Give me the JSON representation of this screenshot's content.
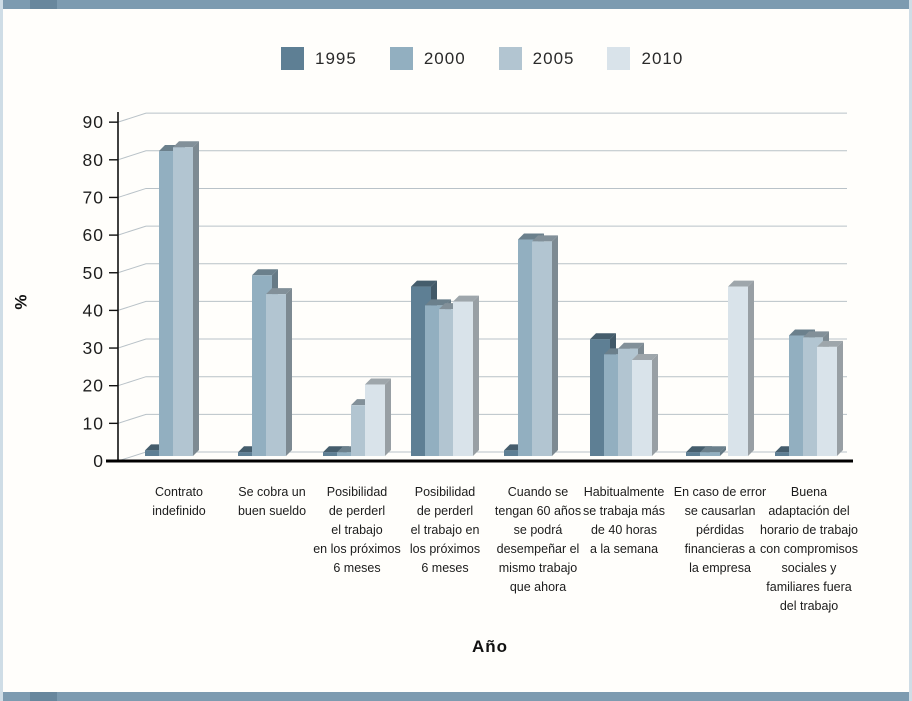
{
  "frame": {
    "bar_color": "#7d9bb0",
    "accent_color": "#68879d",
    "edge_color": "#cfdde6"
  },
  "chart_data": {
    "type": "bar",
    "title": "",
    "xlabel": "Año",
    "ylabel": "%",
    "ylim": [
      0,
      90
    ],
    "yticks": [
      0,
      10,
      20,
      30,
      40,
      50,
      60,
      70,
      80,
      90
    ],
    "grid": true,
    "pseudo_3d": true,
    "legend_position": "top",
    "categories": [
      "Contrato indefinido",
      "Se cobra un buen sueldo",
      "Posibilidad de perderl el trabajo en los próximos 6 meses",
      "Posibilidad de perderl el trabajo en los próximos 6 meses",
      "Cuando se tengan 60 años se podrá desempeñar el mismo trabajo que ahora",
      "Habitualmente se trabaja más de 40 horas a la semana",
      "En caso de error se causarlan pérdidas financieras a la empresa",
      "Buena adaptación del horario de trabajo con compromisos sociales y familiares fuera del trabajo"
    ],
    "category_lines": [
      [
        "Contrato",
        "indefinido"
      ],
      [
        "Se cobra un",
        "buen sueldo"
      ],
      [
        "Posibilidad",
        "de perderl",
        "el trabajo",
        "en los próximos",
        "6 meses"
      ],
      [
        "Posibilidad",
        "de perderl",
        "el trabajo en",
        "los próximos",
        "6 meses"
      ],
      [
        "Cuando se",
        "tengan 60 años",
        "se podrá",
        "desempeñar el",
        "mismo trabajo",
        "que ahora"
      ],
      [
        "Habitualmente",
        "se trabaja más",
        "de 40 horas",
        "a la semana"
      ],
      [
        "En caso de error",
        "se causarlan",
        "pérdidas",
        "financieras a",
        "la empresa"
      ],
      [
        "Buena",
        "adaptación del",
        "horario de trabajo",
        "con compromisos",
        "sociales y",
        "familiares fuera",
        "del trabajo"
      ]
    ],
    "series": [
      {
        "name": "1995",
        "color": "#5e7f94",
        "values": [
          1.5,
          1,
          1,
          45,
          1.5,
          31,
          1,
          1
        ]
      },
      {
        "name": "2000",
        "color": "#92afc0",
        "values": [
          81,
          48,
          1,
          40,
          57.5,
          27,
          1,
          32
        ]
      },
      {
        "name": "2005",
        "color": "#b2c5d1",
        "values": [
          82,
          43,
          13.5,
          39,
          57,
          28.5,
          null,
          31.5
        ]
      },
      {
        "name": "2010",
        "color": "#d9e3ea",
        "values": [
          null,
          null,
          19,
          41,
          null,
          25.5,
          45,
          29
        ]
      }
    ]
  }
}
